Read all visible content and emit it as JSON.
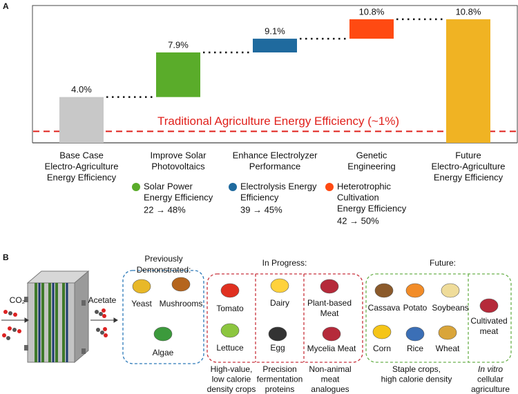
{
  "chart_data": {
    "type": "waterfall",
    "panel_label": "A",
    "categories": [
      [
        "Base Case",
        "Electro-Agriculture",
        "Energy Efficiency"
      ],
      [
        "Improve Solar",
        "Photovoltaics"
      ],
      [
        "Enhance Electrolyzer",
        "Performance"
      ],
      [
        "Genetic",
        "Engineering"
      ],
      [
        "Future",
        "Electro-Agriculture",
        "Energy Efficiency"
      ]
    ],
    "values": [
      4.0,
      7.9,
      9.1,
      10.8,
      10.8
    ],
    "value_labels": [
      "4.0%",
      "7.9%",
      "9.1%",
      "10.8%",
      "10.8%"
    ],
    "measure": [
      "total",
      "step",
      "step",
      "step",
      "total"
    ],
    "colors": [
      "#c8c8c8",
      "#5aac2a",
      "#1f6a9e",
      "#ff4a12",
      "#f0b323"
    ],
    "ylim": [
      0,
      12
    ],
    "reference_line": {
      "value": 1,
      "label": "Traditional Agriculture Energy Efficiency (~1%)",
      "color": "#e0201b"
    },
    "notes": [
      null,
      {
        "color": "#5aac2a",
        "lines": [
          "Solar Power",
          "Energy Efficiency"
        ],
        "change": "22 → 48%"
      },
      {
        "color": "#1f6a9e",
        "lines": [
          "Electrolysis Energy",
          "Efficiency"
        ],
        "change": "39 → 45%"
      },
      {
        "color": "#ff4a12",
        "lines": [
          "Heterotrophic",
          "Cultivation",
          "Energy Efficiency"
        ],
        "change": "42 → 50%"
      },
      null
    ]
  },
  "diagram": {
    "panel_label": "B",
    "input": "CO₂",
    "output": "Acetate",
    "groups": [
      {
        "title": [
          "Previously",
          "Demonstrated:"
        ],
        "color": "#2a78b8",
        "columns": [
          {
            "items": [
              [
                "Yeast"
              ],
              [
                "Mushrooms"
              ],
              [
                "Algae"
              ]
            ]
          }
        ]
      },
      {
        "title": [
          "In Progress:"
        ],
        "color": "#c8323c",
        "columns": [
          {
            "items": [
              [
                "Tomato"
              ],
              [
                "Lettuce"
              ]
            ],
            "caption": [
              "High-value,",
              "low calorie",
              "density crops"
            ]
          },
          {
            "items": [
              [
                "Dairy"
              ],
              [
                "Egg"
              ]
            ],
            "caption": [
              "Precision",
              "fermentation",
              "proteins"
            ]
          },
          {
            "items": [
              [
                "Plant-based",
                "Meat"
              ],
              [
                "Mycelia Meat"
              ]
            ],
            "caption": [
              "Non-animal",
              "meat",
              "analogues"
            ]
          }
        ]
      },
      {
        "title": [
          "Future:"
        ],
        "color": "#6ab04c",
        "columns": [
          {
            "items": [
              [
                "Cassava"
              ],
              [
                "Potato"
              ],
              [
                "Soybeans"
              ],
              [
                "Corn"
              ],
              [
                "Rice"
              ],
              [
                "Wheat"
              ]
            ],
            "caption": [
              "Staple crops,",
              "high calorie density"
            ]
          },
          {
            "items": [
              [
                "Cultivated",
                "meat"
              ]
            ],
            "caption": [
              "In vitro",
              "cellular",
              "agriculture"
            ]
          }
        ]
      }
    ]
  }
}
